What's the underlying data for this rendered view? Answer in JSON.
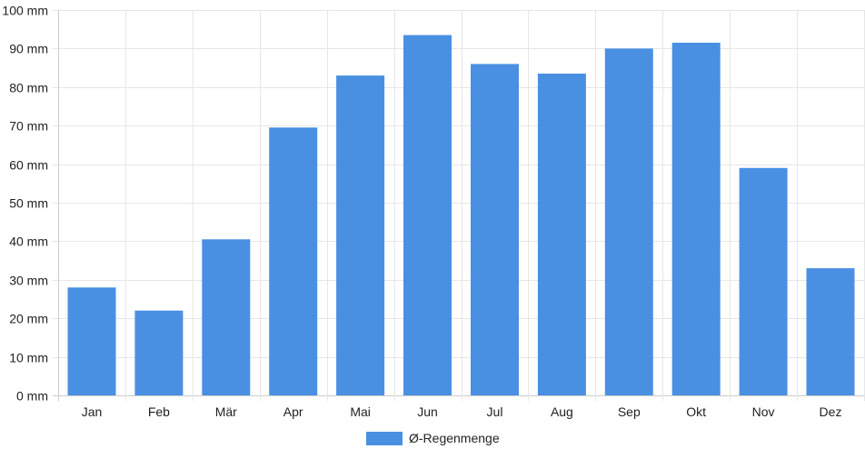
{
  "chart_data": {
    "type": "bar",
    "categories": [
      "Jan",
      "Feb",
      "Mär",
      "Apr",
      "Mai",
      "Jun",
      "Jul",
      "Aug",
      "Sep",
      "Okt",
      "Nov",
      "Dez"
    ],
    "series": [
      {
        "name": "Ø-Regenmenge",
        "values": [
          28,
          22,
          40.5,
          69.5,
          83,
          93.5,
          86,
          83.5,
          90,
          91.5,
          59,
          33
        ]
      }
    ],
    "y_ticks": [
      "0 mm",
      "10 mm",
      "20 mm",
      "30 mm",
      "40 mm",
      "50 mm",
      "60 mm",
      "70 mm",
      "80 mm",
      "90 mm",
      "100 mm"
    ],
    "ylim": [
      0,
      100
    ],
    "title": "",
    "xlabel": "",
    "ylabel": "",
    "grid": true,
    "legend_position": "bottom-center",
    "colors": {
      "bar": "#4a90e2",
      "grid": "#e6e6e6",
      "axis": "#cccccc",
      "text": "#222222"
    }
  }
}
